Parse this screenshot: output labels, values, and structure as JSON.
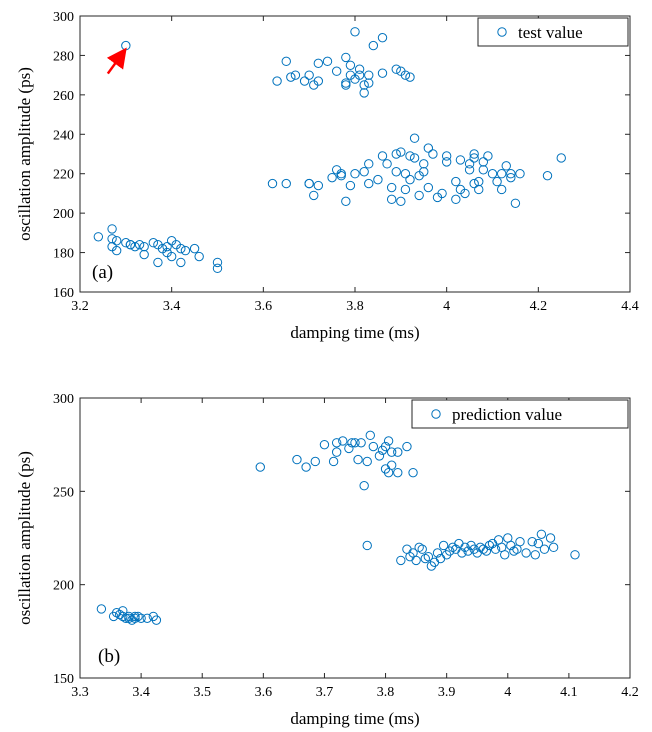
{
  "chart_data": [
    {
      "type": "scatter",
      "panel_label": "(a)",
      "xlabel": "damping time (ms)",
      "ylabel": "oscillation amplitude (ps)",
      "xlim": [
        3.2,
        4.4
      ],
      "ylim": [
        160,
        300
      ],
      "xticks": [
        "3.2",
        "3.4",
        "3.6",
        "3.8",
        "4",
        "4.2",
        "4.4"
      ],
      "yticks": [
        "160",
        "180",
        "200",
        "220",
        "240",
        "260",
        "280",
        "300"
      ],
      "legend_position": "top-right",
      "marker_color": "#0072BD",
      "annotation": {
        "type": "arrow",
        "color": "#ff0000",
        "points_to": {
          "x": 3.3,
          "y": 285
        }
      },
      "series": [
        {
          "name": "test value",
          "points": [
            [
              3.3,
              285
            ],
            [
              3.24,
              188
            ],
            [
              3.27,
              192
            ],
            [
              3.27,
              187
            ],
            [
              3.28,
              186
            ],
            [
              3.3,
              185
            ],
            [
              3.31,
              184
            ],
            [
              3.32,
              183
            ],
            [
              3.27,
              183
            ],
            [
              3.28,
              181
            ],
            [
              3.31,
              184
            ],
            [
              3.33,
              184
            ],
            [
              3.34,
              183
            ],
            [
              3.34,
              179
            ],
            [
              3.36,
              185
            ],
            [
              3.37,
              184
            ],
            [
              3.37,
              175
            ],
            [
              3.38,
              182
            ],
            [
              3.39,
              183
            ],
            [
              3.39,
              180
            ],
            [
              3.4,
              186
            ],
            [
              3.4,
              178
            ],
            [
              3.41,
              184
            ],
            [
              3.42,
              182
            ],
            [
              3.42,
              175
            ],
            [
              3.43,
              181
            ],
            [
              3.45,
              182
            ],
            [
              3.46,
              178
            ],
            [
              3.5,
              175
            ],
            [
              3.5,
              172
            ],
            [
              3.63,
              267
            ],
            [
              3.65,
              277
            ],
            [
              3.66,
              269
            ],
            [
              3.67,
              270
            ],
            [
              3.69,
              267
            ],
            [
              3.7,
              270
            ],
            [
              3.71,
              265
            ],
            [
              3.72,
              276
            ],
            [
              3.72,
              267
            ],
            [
              3.74,
              277
            ],
            [
              3.76,
              272
            ],
            [
              3.78,
              279
            ],
            [
              3.78,
              266
            ],
            [
              3.78,
              265
            ],
            [
              3.79,
              270
            ],
            [
              3.79,
              275
            ],
            [
              3.8,
              268
            ],
            [
              3.8,
              292
            ],
            [
              3.81,
              270
            ],
            [
              3.81,
              273
            ],
            [
              3.82,
              261
            ],
            [
              3.82,
              265
            ],
            [
              3.83,
              266
            ],
            [
              3.83,
              270
            ],
            [
              3.84,
              285
            ],
            [
              3.86,
              289
            ],
            [
              3.86,
              271
            ],
            [
              3.89,
              273
            ],
            [
              3.9,
              272
            ],
            [
              3.91,
              270
            ],
            [
              3.92,
              269
            ],
            [
              3.62,
              215
            ],
            [
              3.65,
              215
            ],
            [
              3.7,
              215
            ],
            [
              3.7,
              215
            ],
            [
              3.71,
              209
            ],
            [
              3.72,
              214
            ],
            [
              3.75,
              218
            ],
            [
              3.76,
              222
            ],
            [
              3.77,
              219
            ],
            [
              3.77,
              220
            ],
            [
              3.78,
              206
            ],
            [
              3.79,
              214
            ],
            [
              3.8,
              220
            ],
            [
              3.82,
              221
            ],
            [
              3.83,
              215
            ],
            [
              3.83,
              225
            ],
            [
              3.85,
              217
            ],
            [
              3.86,
              229
            ],
            [
              3.87,
              225
            ],
            [
              3.88,
              207
            ],
            [
              3.88,
              213
            ],
            [
              3.89,
              221
            ],
            [
              3.89,
              230
            ],
            [
              3.9,
              206
            ],
            [
              3.9,
              231
            ],
            [
              3.91,
              212
            ],
            [
              3.91,
              220
            ],
            [
              3.92,
              217
            ],
            [
              3.92,
              229
            ],
            [
              3.93,
              228
            ],
            [
              3.93,
              238
            ],
            [
              3.94,
              209
            ],
            [
              3.94,
              219
            ],
            [
              3.95,
              221
            ],
            [
              3.95,
              225
            ],
            [
              3.96,
              213
            ],
            [
              3.96,
              233
            ],
            [
              3.97,
              230
            ],
            [
              3.98,
              208
            ],
            [
              3.99,
              210
            ],
            [
              4.0,
              226
            ],
            [
              4.0,
              229
            ],
            [
              4.02,
              207
            ],
            [
              4.02,
              216
            ],
            [
              4.03,
              212
            ],
            [
              4.03,
              227
            ],
            [
              4.04,
              210
            ],
            [
              4.05,
              222
            ],
            [
              4.05,
              225
            ],
            [
              4.06,
              230
            ],
            [
              4.06,
              215
            ],
            [
              4.06,
              228
            ],
            [
              4.07,
              212
            ],
            [
              4.07,
              216
            ],
            [
              4.08,
              222
            ],
            [
              4.08,
              226
            ],
            [
              4.09,
              229
            ],
            [
              4.1,
              220
            ],
            [
              4.11,
              216
            ],
            [
              4.12,
              212
            ],
            [
              4.12,
              220
            ],
            [
              4.13,
              224
            ],
            [
              4.14,
              218
            ],
            [
              4.14,
              220
            ],
            [
              4.15,
              205
            ],
            [
              4.16,
              220
            ],
            [
              4.22,
              219
            ],
            [
              4.25,
              228
            ]
          ]
        }
      ]
    },
    {
      "type": "scatter",
      "panel_label": "(b)",
      "xlabel": "damping time (ms)",
      "ylabel": "oscillation amplitude (ps)",
      "xlim": [
        3.3,
        4.2
      ],
      "ylim": [
        150,
        300
      ],
      "xticks": [
        "3.3",
        "3.4",
        "3.5",
        "3.6",
        "3.7",
        "3.8",
        "3.9",
        "4",
        "4.1",
        "4.2"
      ],
      "yticks": [
        "150",
        "200",
        "250",
        "300"
      ],
      "legend_position": "top-right",
      "marker_color": "#0072BD",
      "series": [
        {
          "name": "prediction value",
          "points": [
            [
              3.335,
              187
            ],
            [
              3.355,
              183
            ],
            [
              3.36,
              185
            ],
            [
              3.365,
              184
            ],
            [
              3.37,
              183
            ],
            [
              3.37,
              186
            ],
            [
              3.375,
              182
            ],
            [
              3.38,
              183
            ],
            [
              3.38,
              182
            ],
            [
              3.385,
              181
            ],
            [
              3.39,
              183
            ],
            [
              3.39,
              182
            ],
            [
              3.395,
              183
            ],
            [
              3.4,
              182
            ],
            [
              3.41,
              182
            ],
            [
              3.42,
              183
            ],
            [
              3.425,
              181
            ],
            [
              3.595,
              263
            ],
            [
              3.655,
              267
            ],
            [
              3.67,
              263
            ],
            [
              3.685,
              266
            ],
            [
              3.7,
              275
            ],
            [
              3.715,
              266
            ],
            [
              3.72,
              276
            ],
            [
              3.72,
              271
            ],
            [
              3.73,
              277
            ],
            [
              3.74,
              273
            ],
            [
              3.745,
              276
            ],
            [
              3.75,
              276
            ],
            [
              3.755,
              267
            ],
            [
              3.76,
              276
            ],
            [
              3.765,
              253
            ],
            [
              3.77,
              266
            ],
            [
              3.775,
              280
            ],
            [
              3.78,
              274
            ],
            [
              3.79,
              269
            ],
            [
              3.795,
              272
            ],
            [
              3.8,
              262
            ],
            [
              3.8,
              274
            ],
            [
              3.805,
              260
            ],
            [
              3.805,
              277
            ],
            [
              3.81,
              271
            ],
            [
              3.81,
              264
            ],
            [
              3.82,
              271
            ],
            [
              3.82,
              260
            ],
            [
              3.835,
              274
            ],
            [
              3.845,
              260
            ],
            [
              3.77,
              221
            ],
            [
              3.825,
              213
            ],
            [
              3.835,
              219
            ],
            [
              3.84,
              215
            ],
            [
              3.845,
              217
            ],
            [
              3.85,
              213
            ],
            [
              3.855,
              220
            ],
            [
              3.86,
              219
            ],
            [
              3.865,
              214
            ],
            [
              3.87,
              215
            ],
            [
              3.875,
              210
            ],
            [
              3.88,
              212
            ],
            [
              3.885,
              217
            ],
            [
              3.89,
              214
            ],
            [
              3.895,
              221
            ],
            [
              3.9,
              216
            ],
            [
              3.905,
              218
            ],
            [
              3.91,
              220
            ],
            [
              3.915,
              219
            ],
            [
              3.92,
              222
            ],
            [
              3.925,
              217
            ],
            [
              3.93,
              220
            ],
            [
              3.935,
              218
            ],
            [
              3.94,
              221
            ],
            [
              3.945,
              219
            ],
            [
              3.95,
              217
            ],
            [
              3.955,
              220
            ],
            [
              3.96,
              219
            ],
            [
              3.965,
              218
            ],
            [
              3.97,
              221
            ],
            [
              3.975,
              222
            ],
            [
              3.98,
              219
            ],
            [
              3.985,
              224
            ],
            [
              3.99,
              220
            ],
            [
              3.995,
              216
            ],
            [
              4.0,
              225
            ],
            [
              4.005,
              221
            ],
            [
              4.01,
              218
            ],
            [
              4.015,
              219
            ],
            [
              4.02,
              223
            ],
            [
              4.03,
              217
            ],
            [
              4.04,
              223
            ],
            [
              4.045,
              216
            ],
            [
              4.05,
              222
            ],
            [
              4.055,
              227
            ],
            [
              4.06,
              219
            ],
            [
              4.07,
              225
            ],
            [
              4.075,
              220
            ],
            [
              4.11,
              216
            ]
          ]
        }
      ]
    }
  ]
}
